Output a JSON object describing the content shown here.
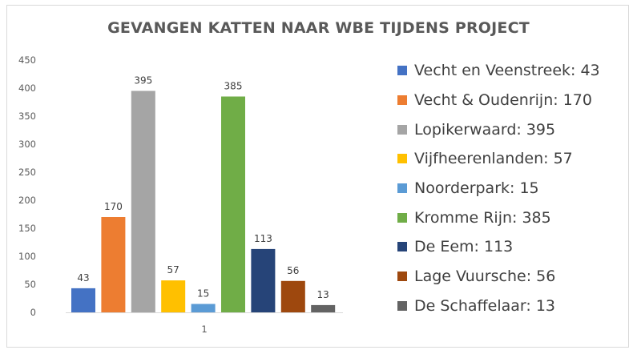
{
  "chart_data": {
    "type": "bar",
    "title": "GEVANGEN KATTEN NAAR WBE TIJDENS PROJECT",
    "categories": [
      "1"
    ],
    "ylim": [
      0,
      450
    ],
    "yticks": [
      "0",
      "50",
      "100",
      "150",
      "200",
      "250",
      "300",
      "350",
      "400",
      "450"
    ],
    "grid": false,
    "legend_position": "right",
    "series": [
      {
        "name": "Vecht en Veenstreek: 43",
        "value": 43,
        "label": "43",
        "color": "#4472c4"
      },
      {
        "name": "Vecht & Oudenrijn: 170",
        "value": 170,
        "label": "170",
        "color": "#ed7d31"
      },
      {
        "name": "Lopikerwaard: 395",
        "value": 395,
        "label": "395",
        "color": "#a5a5a5"
      },
      {
        "name": "Vijfheerenlanden: 57",
        "value": 57,
        "label": "57",
        "color": "#ffc000"
      },
      {
        "name": "Noorderpark: 15",
        "value": 15,
        "label": "15",
        "color": "#5b9bd5"
      },
      {
        "name": "Kromme Rijn: 385",
        "value": 385,
        "label": "385",
        "color": "#70ad47"
      },
      {
        "name": "De Eem: 113",
        "value": 113,
        "label": "113",
        "color": "#264478"
      },
      {
        "name": "Lage Vuursche: 56",
        "value": 56,
        "label": "56",
        "color": "#9e480e"
      },
      {
        "name": "De Schaffelaar: 13",
        "value": 13,
        "label": "13",
        "color": "#636363"
      }
    ]
  }
}
